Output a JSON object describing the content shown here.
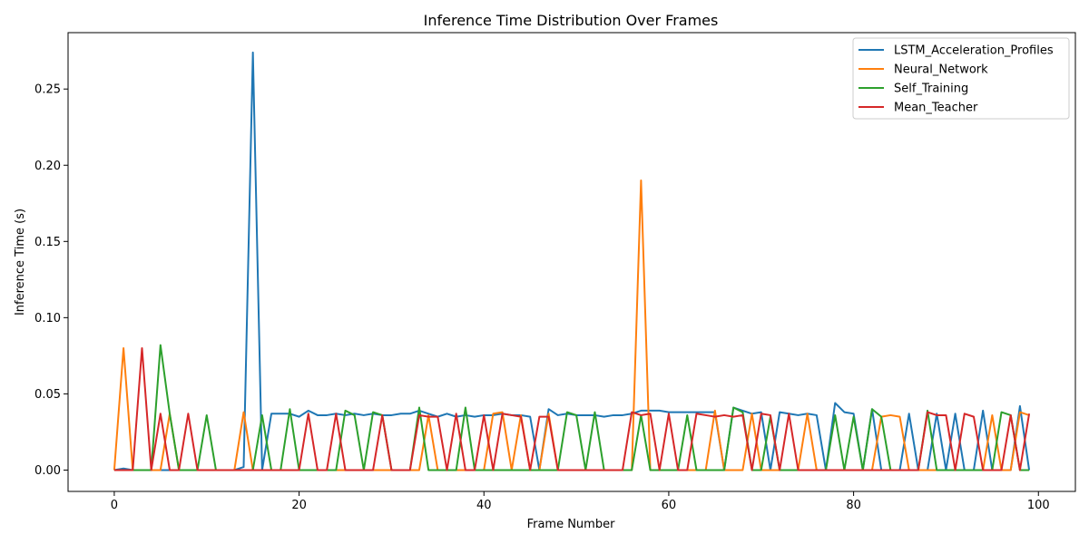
{
  "chart_data": {
    "type": "line",
    "title": "Inference Time Distribution Over Frames",
    "xlabel": "Frame Number",
    "ylabel": "Inference Time (s)",
    "xlim": [
      -5,
      104
    ],
    "ylim": [
      -0.014,
      0.287
    ],
    "xticks": [
      0,
      20,
      40,
      60,
      80,
      100
    ],
    "xtick_labels": [
      "0",
      "20",
      "40",
      "60",
      "80",
      "100"
    ],
    "yticks": [
      0.0,
      0.05,
      0.1,
      0.15,
      0.2,
      0.25
    ],
    "ytick_labels": [
      "0.00",
      "0.05",
      "0.10",
      "0.15",
      "0.20",
      "0.25"
    ],
    "legend_position": "top-right",
    "grid": false,
    "series": [
      {
        "name": "LSTM_Acceleration_Profiles",
        "color": "#1f77b4",
        "values": [
          0,
          0.001,
          0,
          0,
          0,
          0,
          0,
          0,
          0,
          0,
          0,
          0,
          0,
          0,
          0.002,
          0.274,
          0,
          0.037,
          0.037,
          0.037,
          0.035,
          0.039,
          0.036,
          0.036,
          0.037,
          0.036,
          0.037,
          0.036,
          0.037,
          0.036,
          0.036,
          0.037,
          0.037,
          0.039,
          0.037,
          0.035,
          0.037,
          0.035,
          0.036,
          0.035,
          0.036,
          0.036,
          0.037,
          0.036,
          0.036,
          0.035,
          0,
          0.04,
          0.036,
          0.037,
          0.036,
          0.036,
          0.036,
          0.035,
          0.036,
          0.036,
          0.037,
          0.039,
          0.039,
          0.039,
          0.038,
          0.038,
          0.038,
          0.038,
          0.038,
          0.038,
          0,
          0.041,
          0.039,
          0.037,
          0.038,
          0,
          0.038,
          0.037,
          0.036,
          0.037,
          0.036,
          0,
          0.044,
          0.038,
          0.037,
          0,
          0.04,
          0,
          0,
          0,
          0.037,
          0,
          0,
          0.037,
          0,
          0.037,
          0,
          0,
          0.039,
          0,
          0,
          0,
          0.042,
          0
        ]
      },
      {
        "name": "Neural_Network",
        "color": "#ff7f0e",
        "values": [
          0,
          0.08,
          0,
          0,
          0,
          0,
          0.037,
          0,
          0,
          0,
          0,
          0,
          0,
          0,
          0.038,
          0,
          0,
          0,
          0,
          0,
          0,
          0,
          0,
          0,
          0,
          0,
          0,
          0,
          0,
          0,
          0,
          0,
          0,
          0,
          0.036,
          0,
          0,
          0,
          0,
          0,
          0,
          0.037,
          0.038,
          0,
          0.036,
          0,
          0,
          0.037,
          0,
          0,
          0,
          0,
          0,
          0,
          0,
          0,
          0,
          0.19,
          0,
          0,
          0,
          0,
          0,
          0,
          0,
          0.039,
          0,
          0,
          0,
          0.037,
          0,
          0,
          0,
          0,
          0,
          0.037,
          0,
          0,
          0,
          0,
          0,
          0,
          0,
          0.035,
          0.036,
          0.035,
          0,
          0,
          0,
          0,
          0,
          0,
          0,
          0,
          0,
          0.036,
          0,
          0,
          0.038,
          0.036
        ]
      },
      {
        "name": "Self_Training",
        "color": "#2ca02c",
        "values": [
          0,
          0,
          0,
          0,
          0,
          0.082,
          0.037,
          0,
          0,
          0,
          0.036,
          0,
          0,
          0,
          0,
          0,
          0.036,
          0,
          0,
          0.04,
          0,
          0,
          0,
          0,
          0,
          0.039,
          0.036,
          0,
          0.038,
          0.036,
          0,
          0,
          0,
          0.041,
          0,
          0,
          0,
          0,
          0.041,
          0,
          0,
          0,
          0,
          0,
          0,
          0,
          0,
          0,
          0,
          0.038,
          0.036,
          0,
          0.038,
          0,
          0,
          0,
          0,
          0.036,
          0,
          0,
          0,
          0,
          0.036,
          0,
          0,
          0,
          0,
          0.041,
          0.038,
          0,
          0,
          0.035,
          0,
          0,
          0,
          0,
          0,
          0,
          0.036,
          0,
          0.035,
          0,
          0.04,
          0.035,
          0,
          0,
          0,
          0,
          0.039,
          0,
          0,
          0,
          0,
          0,
          0,
          0,
          0.038,
          0.036,
          0,
          0
        ]
      },
      {
        "name": "Mean_Teacher",
        "color": "#d62728",
        "values": [
          0,
          0,
          0,
          0.08,
          0,
          0.037,
          0,
          0,
          0.037,
          0,
          0,
          0,
          0,
          0,
          0,
          0,
          0,
          0,
          0,
          0,
          0,
          0.037,
          0,
          0,
          0.037,
          0,
          0,
          0,
          0,
          0.036,
          0,
          0,
          0,
          0.036,
          0.035,
          0.035,
          0,
          0.037,
          0,
          0,
          0.036,
          0,
          0.037,
          0.036,
          0.035,
          0,
          0.035,
          0.035,
          0,
          0,
          0,
          0,
          0,
          0,
          0,
          0,
          0.038,
          0.036,
          0.037,
          0,
          0.037,
          0,
          0,
          0.037,
          0.036,
          0.035,
          0.036,
          0.035,
          0.036,
          0,
          0.037,
          0.036,
          0,
          0.037,
          0,
          0,
          0,
          0,
          0,
          0,
          0,
          0,
          0,
          0,
          0,
          0,
          0,
          0,
          0.038,
          0.036,
          0.036,
          0,
          0.037,
          0.035,
          0,
          0,
          0,
          0.036,
          0,
          0.037
        ]
      }
    ]
  }
}
